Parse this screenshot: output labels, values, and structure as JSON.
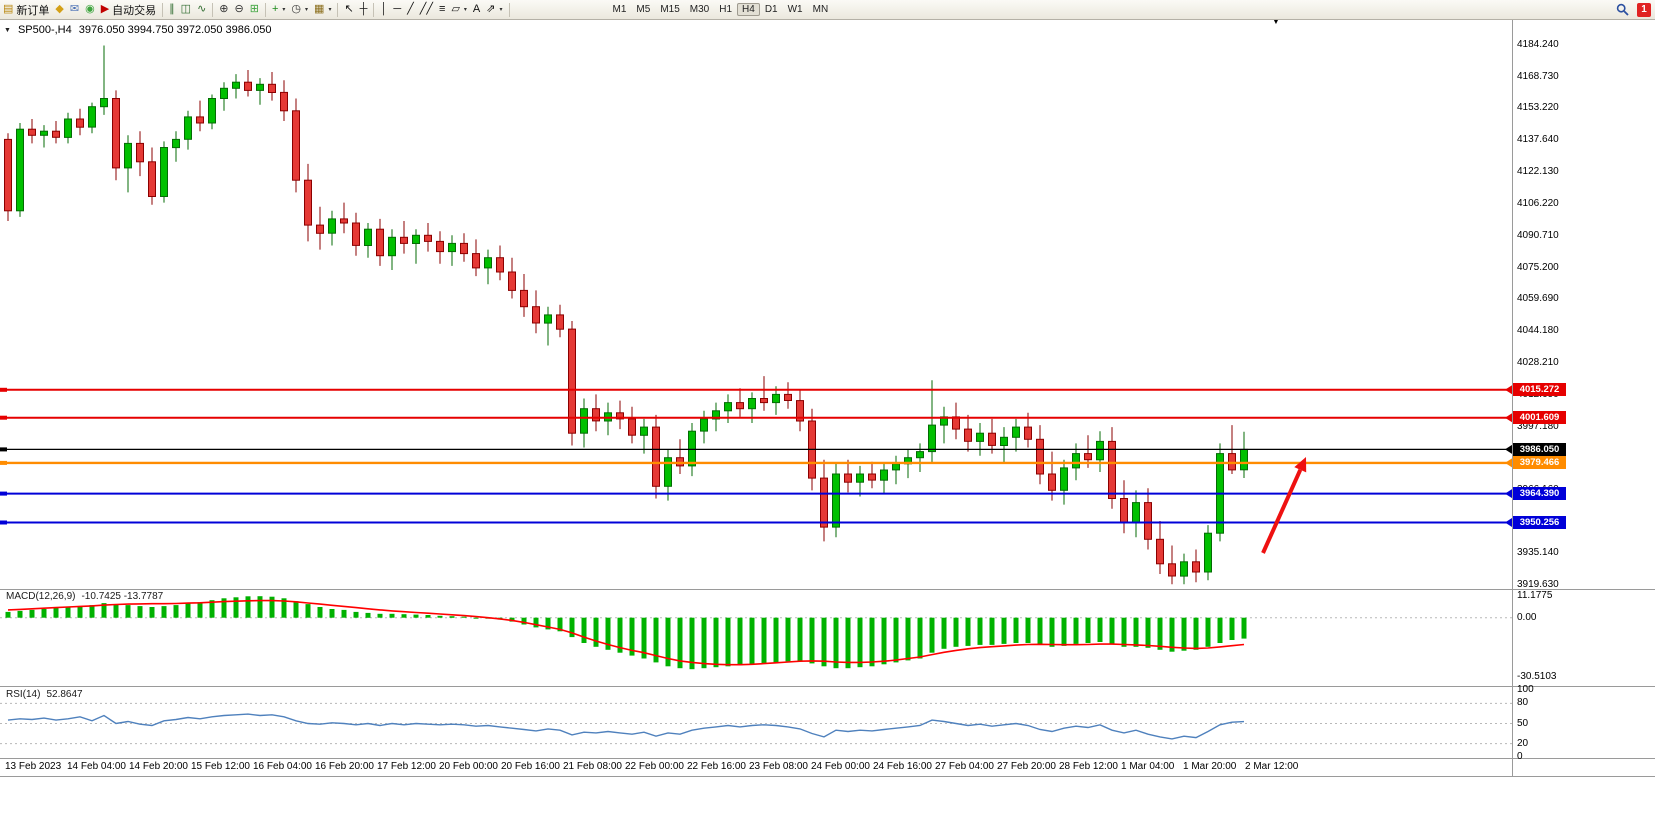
{
  "icons": {
    "collapse": "▼",
    "shift_marker": "▼"
  },
  "toolbar": {
    "notification_count": "1",
    "active_timeframe": "H4",
    "timeframes": [
      "M1",
      "M5",
      "M15",
      "M30",
      "H1",
      "H4",
      "D1",
      "W1",
      "MN"
    ],
    "items": [
      {
        "type": "button",
        "name": "new-order-button",
        "icon": "new-order-icon",
        "glyph": "▤",
        "glyph_color": "#b8860b",
        "label": "新订单"
      },
      {
        "type": "button",
        "name": "alerts-button",
        "icon": "alerts-icon",
        "glyph": "◆",
        "glyph_color": "#d4a017"
      },
      {
        "type": "button",
        "name": "mailbox-button",
        "icon": "mailbox-icon",
        "glyph": "✉",
        "glyph_color": "#4a6fb5"
      },
      {
        "type": "button",
        "name": "news-button",
        "icon": "news-icon",
        "glyph": "◉",
        "glyph_color": "#3fa53f"
      },
      {
        "type": "button",
        "name": "auto-trading-button",
        "icon": "auto-trading-icon",
        "glyph": "▶",
        "glyph_color": "#c00000",
        "label": "自动交易"
      },
      {
        "type": "sep"
      },
      {
        "type": "button",
        "name": "bar-chart-button",
        "icon": "bar-chart-icon",
        "glyph": "∥",
        "glyph_color": "#2f6b2f"
      },
      {
        "type": "button",
        "name": "candlestick-chart-button",
        "icon": "candlestick-chart-icon",
        "glyph": "◫",
        "glyph_color": "#2f6b2f"
      },
      {
        "type": "button",
        "name": "line-chart-button",
        "icon": "line-chart-icon",
        "glyph": "∿",
        "glyph_color": "#2f6b2f"
      },
      {
        "type": "sep"
      },
      {
        "type": "button",
        "name": "zoom-in-button",
        "icon": "zoom-in-icon",
        "glyph": "⊕",
        "glyph_color": "#333333"
      },
      {
        "type": "button",
        "name": "zoom-out-button",
        "icon": "zoom-out-icon",
        "glyph": "⊖",
        "glyph_color": "#333333"
      },
      {
        "type": "button",
        "name": "tile-windows-button",
        "icon": "tile-windows-icon",
        "glyph": "⊞",
        "glyph_color": "#3fa53f"
      },
      {
        "type": "sep"
      },
      {
        "type": "button",
        "name": "indicators-button",
        "icon": "indicators-icon",
        "glyph": "+",
        "glyph_color": "#1a8a1a",
        "caret": true
      },
      {
        "type": "button",
        "name": "periods-button",
        "icon": "periods-icon",
        "glyph": "◷",
        "glyph_color": "#333333",
        "caret": true
      },
      {
        "type": "button",
        "name": "templates-button",
        "icon": "templates-icon",
        "glyph": "▦",
        "glyph_color": "#8a6d1a",
        "caret": true
      },
      {
        "type": "sep"
      },
      {
        "type": "button",
        "name": "cursor-button",
        "icon": "cursor-icon",
        "glyph": "↖",
        "glyph_color": "#111111"
      },
      {
        "type": "button",
        "name": "crosshair-button",
        "icon": "crosshair-icon",
        "glyph": "┼",
        "glyph_color": "#111111"
      },
      {
        "type": "sep"
      },
      {
        "type": "button",
        "name": "vertical-line-button",
        "icon": "vertical-line-icon",
        "glyph": "│",
        "glyph_color": "#111111"
      },
      {
        "type": "button",
        "name": "horizontal-line-button",
        "icon": "horizontal-line-icon",
        "glyph": "─",
        "glyph_color": "#111111"
      },
      {
        "type": "button",
        "name": "trendline-button",
        "icon": "trendline-icon",
        "glyph": "╱",
        "glyph_color": "#111111"
      },
      {
        "type": "button",
        "name": "channel-button",
        "icon": "channel-icon",
        "glyph": "╱╱",
        "glyph_color": "#111111"
      },
      {
        "type": "button",
        "name": "fibonacci-button",
        "icon": "fibonacci-icon",
        "glyph": "≡",
        "glyph_color": "#111111"
      },
      {
        "type": "button",
        "name": "shapes-button",
        "icon": "shapes-icon",
        "glyph": "▱",
        "glyph_color": "#111111",
        "caret": true
      },
      {
        "type": "button",
        "name": "text-button",
        "icon": "text-icon",
        "glyph": "A",
        "glyph_color": "#111111"
      },
      {
        "type": "button",
        "name": "arrows-button",
        "icon": "arrows-icon",
        "glyph": "⇗",
        "glyph_color": "#111111",
        "caret": true
      },
      {
        "type": "sep"
      }
    ]
  },
  "chart": {
    "symbol_label": "SP500-,H4",
    "ohlc_label": "3976.050 3994.750 3972.050 3986.050"
  },
  "indicators": {
    "macd_name": "MACD(12,26,9)",
    "macd_values": "-10.7425 -13.7787",
    "rsi_name": "RSI(14)",
    "rsi_value": "52.8647"
  },
  "chart_data": {
    "type": "candlestick",
    "symbol": "SP500-",
    "timeframe": "H4",
    "ohlc_current": {
      "open": 3976.05,
      "high": 3994.75,
      "low": 3972.05,
      "close": 3986.05
    },
    "colors": {
      "up": "#00c000",
      "up_border": "#046b04",
      "down": "#e53935",
      "down_border": "#8b0000",
      "macd_histogram": "#00b200",
      "macd_signal": "#ff0000",
      "rsi_line": "#4f81bd"
    },
    "price_axis_ticks": [
      "4184.240",
      "4168.730",
      "4153.220",
      "4137.640",
      "4122.130",
      "4106.220",
      "4090.710",
      "4075.200",
      "4059.690",
      "4044.180",
      "4028.210",
      "4012.690",
      "3997.180",
      "3981.670",
      "3966.160",
      "3950.650",
      "3935.140",
      "3919.630"
    ],
    "time_axis_labels": [
      "13 Feb 2023",
      "14 Feb 04:00",
      "14 Feb 20:00",
      "15 Feb 12:00",
      "16 Feb 04:00",
      "16 Feb 20:00",
      "17 Feb 12:00",
      "20 Feb 00:00",
      "20 Feb 16:00",
      "21 Feb 08:00",
      "22 Feb 00:00",
      "22 Feb 16:00",
      "23 Feb 08:00",
      "24 Feb 00:00",
      "24 Feb 16:00",
      "27 Feb 04:00",
      "27 Feb 20:00",
      "28 Feb 12:00",
      "1 Mar 04:00",
      "1 Mar 20:00",
      "2 Mar 12:00"
    ],
    "horizontal_lines": [
      {
        "price": 4015.272,
        "color": "#e60000",
        "width": 2
      },
      {
        "price": 4001.609,
        "color": "#e60000",
        "width": 2
      },
      {
        "price": 3986.05,
        "color": "#000000",
        "width": 1.2
      },
      {
        "price": 3979.466,
        "color": "#ff8c00",
        "width": 2.4
      },
      {
        "price": 3964.39,
        "color": "#0000d8",
        "width": 2
      },
      {
        "price": 3950.256,
        "color": "#0000d8",
        "width": 2
      }
    ],
    "arrow_annotation": {
      "from": [
        1263,
        553
      ],
      "to": [
        1306,
        457
      ],
      "color": "#ee1111",
      "width": 4
    },
    "candles": [
      [
        4138,
        4141,
        4098,
        4103
      ],
      [
        4103,
        4146,
        4100,
        4143
      ],
      [
        4143,
        4148,
        4136,
        4140
      ],
      [
        4140,
        4145,
        4134,
        4142
      ],
      [
        4142,
        4147,
        4136,
        4139
      ],
      [
        4139,
        4151,
        4136,
        4148
      ],
      [
        4148,
        4153,
        4140,
        4144
      ],
      [
        4144,
        4156,
        4141,
        4154
      ],
      [
        4154,
        4184,
        4150,
        4158
      ],
      [
        4158,
        4162,
        4118,
        4124
      ],
      [
        4124,
        4140,
        4112,
        4136
      ],
      [
        4136,
        4142,
        4120,
        4127
      ],
      [
        4127,
        4134,
        4106,
        4110
      ],
      [
        4110,
        4137,
        4107,
        4134
      ],
      [
        4134,
        4142,
        4127,
        4138
      ],
      [
        4138,
        4152,
        4133,
        4149
      ],
      [
        4149,
        4157,
        4142,
        4146
      ],
      [
        4146,
        4160,
        4143,
        4158
      ],
      [
        4158,
        4166,
        4152,
        4163
      ],
      [
        4163,
        4170,
        4158,
        4166
      ],
      [
        4166,
        4172,
        4159,
        4162
      ],
      [
        4162,
        4168,
        4155,
        4165
      ],
      [
        4165,
        4171,
        4157,
        4161
      ],
      [
        4161,
        4167,
        4147,
        4152
      ],
      [
        4152,
        4158,
        4112,
        4118
      ],
      [
        4118,
        4126,
        4088,
        4096
      ],
      [
        4096,
        4105,
        4084,
        4092
      ],
      [
        4092,
        4103,
        4086,
        4099
      ],
      [
        4099,
        4107,
        4092,
        4097
      ],
      [
        4097,
        4102,
        4081,
        4086
      ],
      [
        4086,
        4097,
        4080,
        4094
      ],
      [
        4094,
        4099,
        4076,
        4081
      ],
      [
        4081,
        4094,
        4074,
        4090
      ],
      [
        4090,
        4098,
        4082,
        4087
      ],
      [
        4087,
        4094,
        4077,
        4091
      ],
      [
        4091,
        4097,
        4083,
        4088
      ],
      [
        4088,
        4093,
        4077,
        4083
      ],
      [
        4083,
        4091,
        4076,
        4087
      ],
      [
        4087,
        4092,
        4078,
        4082
      ],
      [
        4082,
        4089,
        4071,
        4075
      ],
      [
        4075,
        4084,
        4067,
        4080
      ],
      [
        4080,
        4086,
        4069,
        4073
      ],
      [
        4073,
        4080,
        4060,
        4064
      ],
      [
        4064,
        4072,
        4051,
        4056
      ],
      [
        4056,
        4064,
        4043,
        4048
      ],
      [
        4048,
        4056,
        4037,
        4052
      ],
      [
        4052,
        4057,
        4041,
        4045
      ],
      [
        4045,
        4049,
        3988,
        3994
      ],
      [
        3994,
        4011,
        3987,
        4006
      ],
      [
        4006,
        4013,
        3995,
        4000
      ],
      [
        4000,
        4009,
        3993,
        4004
      ],
      [
        4004,
        4010,
        3996,
        4001
      ],
      [
        4001,
        4007,
        3989,
        3993
      ],
      [
        3993,
        4001,
        3984,
        3997
      ],
      [
        3997,
        4003,
        3962,
        3968
      ],
      [
        3968,
        3986,
        3961,
        3982
      ],
      [
        3982,
        3991,
        3974,
        3978
      ],
      [
        3978,
        3999,
        3973,
        3995
      ],
      [
        3995,
        4005,
        3989,
        4001
      ],
      [
        4001,
        4009,
        3995,
        4005
      ],
      [
        4005,
        4013,
        3999,
        4009
      ],
      [
        4009,
        4016,
        4002,
        4006
      ],
      [
        4006,
        4014,
        3999,
        4011
      ],
      [
        4011,
        4022,
        4005,
        4009
      ],
      [
        4009,
        4017,
        4003,
        4013
      ],
      [
        4013,
        4019,
        4006,
        4010
      ],
      [
        4010,
        4015,
        3995,
        4000
      ],
      [
        4000,
        4006,
        3966,
        3972
      ],
      [
        3972,
        3981,
        3941,
        3948
      ],
      [
        3948,
        3979,
        3943,
        3974
      ],
      [
        3974,
        3981,
        3965,
        3970
      ],
      [
        3970,
        3978,
        3963,
        3974
      ],
      [
        3974,
        3980,
        3967,
        3971
      ],
      [
        3971,
        3979,
        3964,
        3976
      ],
      [
        3976,
        3983,
        3969,
        3979
      ],
      [
        3979,
        3986,
        3972,
        3982
      ],
      [
        3982,
        3989,
        3975,
        3985
      ],
      [
        3985,
        4020,
        3979,
        3998
      ],
      [
        3998,
        4007,
        3989,
        4002
      ],
      [
        4002,
        4009,
        3991,
        3996
      ],
      [
        3996,
        4003,
        3985,
        3990
      ],
      [
        3990,
        3999,
        3983,
        3994
      ],
      [
        3994,
        4001,
        3984,
        3988
      ],
      [
        3988,
        3997,
        3979,
        3992
      ],
      [
        3992,
        4001,
        3985,
        3997
      ],
      [
        3997,
        4004,
        3987,
        3991
      ],
      [
        3991,
        3998,
        3969,
        3974
      ],
      [
        3974,
        3985,
        3961,
        3966
      ],
      [
        3966,
        3981,
        3959,
        3977
      ],
      [
        3977,
        3989,
        3971,
        3984
      ],
      [
        3984,
        3993,
        3977,
        3981
      ],
      [
        3981,
        3995,
        3975,
        3990
      ],
      [
        3990,
        3997,
        3957,
        3962
      ],
      [
        3962,
        3971,
        3945,
        3950
      ],
      [
        3950,
        3966,
        3943,
        3960
      ],
      [
        3960,
        3967,
        3937,
        3942
      ],
      [
        3942,
        3951,
        3925,
        3930
      ],
      [
        3930,
        3939,
        3920,
        3924
      ],
      [
        3924,
        3935,
        3920,
        3931
      ],
      [
        3931,
        3937,
        3921,
        3926
      ],
      [
        3926,
        3949,
        3922,
        3945
      ],
      [
        3945,
        3989,
        3941,
        3984
      ],
      [
        3984,
        3998,
        3974,
        3976
      ],
      [
        3976.05,
        3994.75,
        3972.05,
        3986.05
      ]
    ],
    "macd": {
      "params": "12,26,9",
      "value": -10.7425,
      "signal_value": -13.7787,
      "axis_ticks": [
        "11.1775",
        "0.00",
        "-30.5103"
      ],
      "histogram": [
        3,
        3.5,
        4,
        4.5,
        5,
        5.5,
        6,
        6.5,
        7.5,
        7,
        6.5,
        6,
        5.5,
        6,
        6.5,
        7.5,
        8,
        9,
        10,
        10.5,
        11,
        11.1,
        10.8,
        10,
        8.5,
        7,
        5.5,
        4.5,
        4,
        3,
        2.5,
        2,
        2,
        1.8,
        1.6,
        1.4,
        1,
        0.8,
        0.5,
        0,
        -0.5,
        -1,
        -2,
        -3.5,
        -5,
        -6,
        -7,
        -10,
        -13,
        -15,
        -16.5,
        -18,
        -19.5,
        -21,
        -23,
        -25,
        -26,
        -26.5,
        -26,
        -25.5,
        -25,
        -24.5,
        -24,
        -23.5,
        -23,
        -22.5,
        -22.5,
        -23.5,
        -25,
        -26,
        -26,
        -25.5,
        -25,
        -24,
        -23,
        -22,
        -21,
        -18,
        -16,
        -15,
        -14.5,
        -14,
        -14,
        -13.5,
        -13,
        -13,
        -14,
        -15,
        -14.5,
        -13.5,
        -13,
        -12.5,
        -13.5,
        -15,
        -15,
        -15.5,
        -16.5,
        -17.5,
        -17,
        -16.5,
        -15,
        -13,
        -11.5,
        -10.74
      ],
      "signal": [
        4,
        4.3,
        4.6,
        4.9,
        5.2,
        5.5,
        5.8,
        6.1,
        6.5,
        6.8,
        7,
        7.1,
        7.2,
        7.2,
        7.3,
        7.5,
        7.7,
        8,
        8.3,
        8.5,
        8.7,
        8.8,
        8.8,
        8.6,
        8.2,
        7.6,
        7,
        6.4,
        5.8,
        5.2,
        4.6,
        4,
        3.5,
        3.1,
        2.7,
        2.3,
        1.9,
        1.5,
        1.1,
        0.6,
        0,
        -0.6,
        -1.4,
        -2.4,
        -3.6,
        -4.8,
        -6,
        -7.8,
        -10,
        -12,
        -13.8,
        -15.4,
        -16.8,
        -18,
        -19.5,
        -21,
        -22.2,
        -23,
        -23.6,
        -24,
        -24.2,
        -24.2,
        -24,
        -23.6,
        -23.2,
        -22.8,
        -22.4,
        -22.2,
        -22.4,
        -22.8,
        -23,
        -23,
        -22.8,
        -22.4,
        -21.8,
        -21,
        -20.2,
        -19,
        -17.8,
        -16.8,
        -16,
        -15.4,
        -14.9,
        -14.5,
        -14.1,
        -13.8,
        -13.7,
        -13.8,
        -13.9,
        -13.9,
        -13.8,
        -13.6,
        -13.6,
        -13.8,
        -14,
        -14.3,
        -14.7,
        -15.2,
        -15.6,
        -15.8,
        -15.6,
        -15,
        -14.4,
        -13.78
      ]
    },
    "rsi": {
      "period": 14,
      "value": 52.8647,
      "axis_ticks": [
        "100",
        "80",
        "50",
        "20",
        "0"
      ],
      "levels": [
        80,
        50,
        20
      ],
      "values": [
        55,
        57,
        56,
        58,
        55,
        57,
        60,
        54,
        62,
        50,
        53,
        49,
        47,
        54,
        56,
        59,
        57,
        60,
        62,
        63,
        64,
        62,
        63,
        60,
        54,
        50,
        49,
        51,
        50,
        48,
        50,
        47,
        50,
        48,
        50,
        49,
        48,
        49,
        48,
        46,
        47,
        45,
        43,
        41,
        39,
        42,
        40,
        33,
        37,
        36,
        38,
        36,
        34,
        37,
        31,
        36,
        34,
        40,
        43,
        45,
        47,
        45,
        47,
        48,
        47,
        45,
        42,
        35,
        30,
        40,
        38,
        40,
        39,
        41,
        43,
        45,
        47,
        55,
        53,
        50,
        47,
        49,
        46,
        48,
        50,
        47,
        41,
        38,
        43,
        46,
        44,
        48,
        40,
        36,
        40,
        34,
        30,
        27,
        31,
        29,
        38,
        48,
        52,
        52.86
      ]
    }
  }
}
